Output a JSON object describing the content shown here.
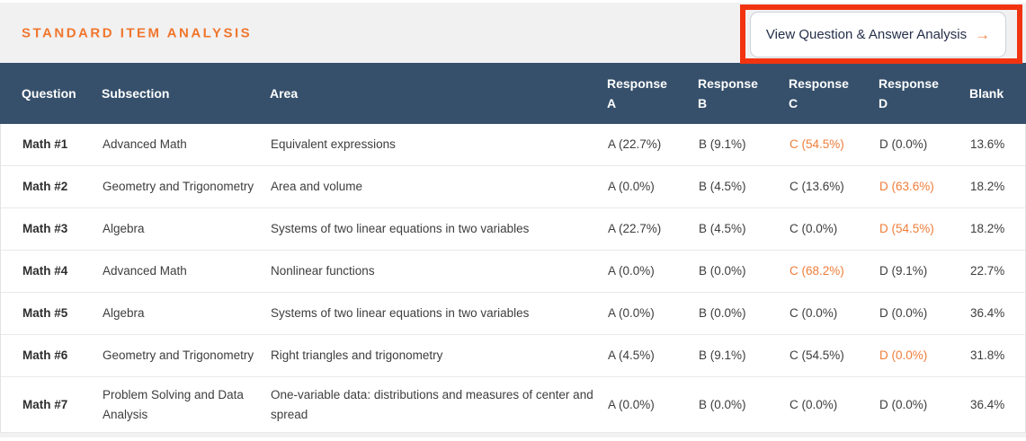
{
  "header": {
    "title": "STANDARD ITEM ANALYSIS",
    "button": {
      "label": "View Question & Answer Analysis",
      "arrow": "→"
    }
  },
  "table": {
    "columns": [
      "Question",
      "Subsection",
      "Area",
      "Response A",
      "Response B",
      "Response C",
      "Response D",
      "Blank"
    ],
    "rows": [
      {
        "question": "Math #1",
        "subsection": "Advanced Math",
        "area": "Equivalent expressions",
        "response_a": "A (22.7%)",
        "response_b": "B (9.1%)",
        "response_c": "C (54.5%)",
        "response_d": "D (0.0%)",
        "blank": "13.6%",
        "highlight": "response_c"
      },
      {
        "question": "Math #2",
        "subsection": "Geometry and Trigonometry",
        "area": "Area and volume",
        "response_a": "A (0.0%)",
        "response_b": "B (4.5%)",
        "response_c": "C (13.6%)",
        "response_d": "D (63.6%)",
        "blank": "18.2%",
        "highlight": "response_d"
      },
      {
        "question": "Math #3",
        "subsection": "Algebra",
        "area": "Systems of two linear equations in two variables",
        "response_a": "A (22.7%)",
        "response_b": "B (4.5%)",
        "response_c": "C (0.0%)",
        "response_d": "D (54.5%)",
        "blank": "18.2%",
        "highlight": "response_d"
      },
      {
        "question": "Math #4",
        "subsection": "Advanced Math",
        "area": "Nonlinear functions",
        "response_a": "A (0.0%)",
        "response_b": "B (0.0%)",
        "response_c": "C (68.2%)",
        "response_d": "D (9.1%)",
        "blank": "22.7%",
        "highlight": "response_c"
      },
      {
        "question": "Math #5",
        "subsection": "Algebra",
        "area": "Systems of two linear equations in two variables",
        "response_a": "A (0.0%)",
        "response_b": "B (0.0%)",
        "response_c": "C (0.0%)",
        "response_d": "D (0.0%)",
        "blank": "36.4%",
        "highlight": null
      },
      {
        "question": "Math #6",
        "subsection": "Geometry and Trigonometry",
        "area": "Right triangles and trigonometry",
        "response_a": "A (4.5%)",
        "response_b": "B (9.1%)",
        "response_c": "C (54.5%)",
        "response_d": "D (0.0%)",
        "blank": "31.8%",
        "highlight": "response_d"
      },
      {
        "question": "Math #7",
        "subsection": "Problem Solving and Data Analysis",
        "area": "One-variable data: distributions and measures of center and spread",
        "response_a": "A (0.0%)",
        "response_b": "B (0.0%)",
        "response_c": "C (0.0%)",
        "response_d": "D (0.0%)",
        "blank": "36.4%",
        "highlight": null
      }
    ]
  },
  "colors": {
    "title_orange": "#f0762d",
    "highlight_orange": "#ef7d3a",
    "table_header_bg": "#36506b",
    "annotation_red": "#f23310"
  }
}
